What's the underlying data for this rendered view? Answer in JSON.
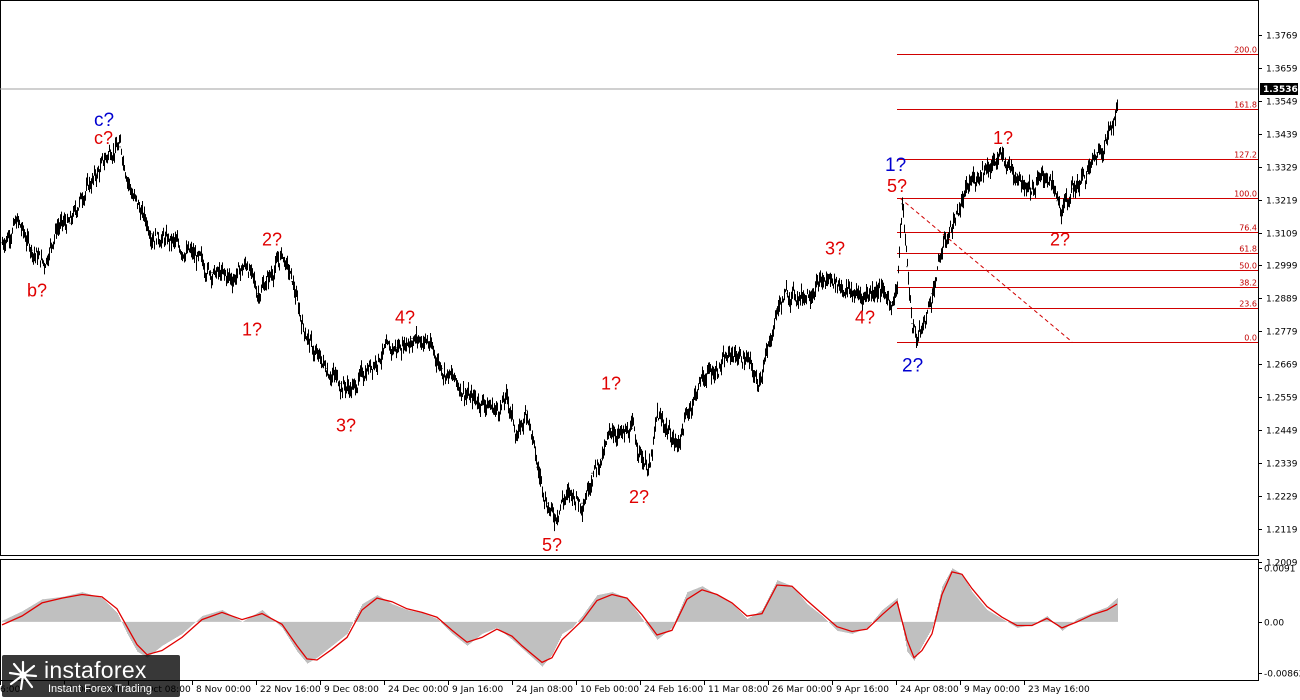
{
  "chart_data": [
    {
      "type": "line",
      "panel": "price",
      "title": "",
      "ylim": [
        1.2032,
        1.3879
      ],
      "y_ticks": [
        "1.3769",
        "1.3659",
        "1.3549",
        "1.3439",
        "1.3329",
        "1.3219",
        "1.3109",
        "1.2999",
        "1.2889",
        "1.2779",
        "1.2669",
        "1.2559",
        "1.2449",
        "1.2339",
        "1.2229",
        "1.2119",
        "1.2009"
      ],
      "x_ticks": [
        "6:00",
        "9 Oct 16:00",
        "24 Oct 08:00",
        "8 Nov 00:00",
        "22 Nov 16:00",
        "9 Dec 08:00",
        "24 Dec 00:00",
        "9 Jan 16:00",
        "24 Jan 08:00",
        "10 Feb 00:00",
        "24 Feb 16:00",
        "11 Mar 08:00",
        "26 Mar 00:00",
        "9 Apr 16:00",
        "24 Apr 08:00",
        "9 May 00:00",
        "23 May 16:00"
      ],
      "current_price": "1.3536",
      "series": [
        {
          "style": "bars-black",
          "x": [
            0,
            15,
            30,
            42,
            55,
            68,
            80,
            95,
            108,
            118,
            130,
            150,
            170,
            190,
            210,
            230,
            245,
            255,
            268,
            280,
            290,
            300,
            312,
            325,
            338,
            350,
            365,
            380,
            395,
            410,
            425,
            440,
            455,
            468,
            480,
            495,
            505,
            515,
            525,
            535,
            545,
            552,
            560,
            570,
            580,
            590,
            600,
            610,
            620,
            630,
            640,
            648,
            655,
            665,
            675,
            685,
            700,
            715,
            730,
            745,
            755,
            765,
            775,
            785,
            800,
            815,
            830,
            845,
            860,
            875,
            890,
            895,
            900,
            905,
            910,
            915,
            922,
            930,
            940,
            955,
            970,
            985,
            1000,
            1015,
            1030,
            1045,
            1055,
            1060,
            1070,
            1085,
            1095,
            1105,
            1115
          ],
          "y": [
            1.3075,
            1.3145,
            1.305,
            1.3005,
            1.313,
            1.314,
            1.3235,
            1.3305,
            1.3385,
            1.3395,
            1.3235,
            1.3105,
            1.3075,
            1.3035,
            1.2975,
            1.2955,
            1.3005,
            1.2905,
            1.2965,
            1.3035,
            1.2945,
            1.2805,
            1.2705,
            1.2655,
            1.2605,
            1.2585,
            1.2655,
            1.2705,
            1.2725,
            1.2755,
            1.2745,
            1.2655,
            1.2605,
            1.2555,
            1.2545,
            1.2515,
            1.2555,
            1.2425,
            1.2515,
            1.2325,
            1.2205,
            1.2155,
            1.2215,
            1.2235,
            1.2205,
            1.2305,
            1.2355,
            1.2455,
            1.2425,
            1.2455,
            1.2355,
            1.2325,
            1.2495,
            1.2455,
            1.2395,
            1.2505,
            1.2625,
            1.2655,
            1.2705,
            1.2685,
            1.2605,
            1.2705,
            1.2855,
            1.2905,
            1.2895,
            1.2935,
            1.2955,
            1.2915,
            1.2895,
            1.2925,
            1.2875,
            1.2935,
            1.3205,
            1.2995,
            1.2805,
            1.2755,
            1.2805,
            1.2905,
            1.3055,
            1.3175,
            1.3285,
            1.3335,
            1.3355,
            1.3305,
            1.3255,
            1.3305,
            1.3215,
            1.3175,
            1.3255,
            1.3305,
            1.3375,
            1.3425,
            1.3536
          ]
        }
      ],
      "fib_levels": [
        {
          "label": "200.0",
          "price": 1.3705
        },
        {
          "label": "161.8",
          "price": 1.3521
        },
        {
          "label": "127.2",
          "price": 1.3355
        },
        {
          "label": "100.0",
          "price": 1.3224
        },
        {
          "label": "76.4",
          "price": 1.3111
        },
        {
          "label": "61.8",
          "price": 1.3041
        },
        {
          "label": "50.0",
          "price": 1.2984
        },
        {
          "label": "38.2",
          "price": 1.2927
        },
        {
          "label": "23.6",
          "price": 1.2857
        },
        {
          "label": "0.0",
          "price": 1.2744
        }
      ],
      "annotations": [
        {
          "text": "c?",
          "color": "#0000d0",
          "x": 92,
          "price": 1.3465
        },
        {
          "text": "c?",
          "color": "#e00000",
          "x": 92,
          "price": 1.3405
        },
        {
          "text": "b?",
          "color": "#e00000",
          "x": 25,
          "price": 1.2895
        },
        {
          "text": "2?",
          "color": "#e00000",
          "x": 260,
          "price": 1.3065
        },
        {
          "text": "1?",
          "color": "#e00000",
          "x": 240,
          "price": 1.2765
        },
        {
          "text": "3?",
          "color": "#e00000",
          "x": 334,
          "price": 1.2445
        },
        {
          "text": "4?",
          "color": "#e00000",
          "x": 393,
          "price": 1.2805
        },
        {
          "text": "5?",
          "color": "#e00000",
          "x": 540,
          "price": 1.2045
        },
        {
          "text": "1?",
          "color": "#e00000",
          "x": 599,
          "price": 1.2585
        },
        {
          "text": "2?",
          "color": "#e00000",
          "x": 627,
          "price": 1.2205
        },
        {
          "text": "3?",
          "color": "#e00000",
          "x": 823,
          "price": 1.3035
        },
        {
          "text": "4?",
          "color": "#e00000",
          "x": 853,
          "price": 1.2805
        },
        {
          "text": "1?",
          "color": "#0000d0",
          "x": 883,
          "price": 1.3315
        },
        {
          "text": "5?",
          "color": "#e00000",
          "x": 885,
          "price": 1.3245
        },
        {
          "text": "2?",
          "color": "#0000d0",
          "x": 900,
          "price": 1.2645
        },
        {
          "text": "1?",
          "color": "#e00000",
          "x": 991,
          "price": 1.3405
        },
        {
          "text": "2?",
          "color": "#e00000",
          "x": 1048,
          "price": 1.3065
        }
      ]
    },
    {
      "type": "area",
      "panel": "oscillator",
      "ylim": [
        -0.00975,
        0.0104
      ],
      "y_ticks": [
        "0.0091",
        "0.00",
        "-0.00862"
      ],
      "series": [
        {
          "style": "histogram-gray",
          "x": [
            0,
            20,
            40,
            60,
            80,
            100,
            115,
            125,
            135,
            145,
            160,
            180,
            200,
            220,
            240,
            260,
            280,
            295,
            305,
            315,
            330,
            345,
            360,
            375,
            390,
            405,
            420,
            435,
            450,
            465,
            480,
            495,
            510,
            520,
            530,
            540,
            550,
            560,
            570,
            580,
            595,
            610,
            625,
            640,
            655,
            670,
            685,
            700,
            715,
            730,
            745,
            760,
            775,
            790,
            805,
            820,
            835,
            850,
            865,
            880,
            895,
            905,
            912,
            920,
            930,
            940,
            950,
            960,
            970,
            985,
            1000,
            1015,
            1030,
            1045,
            1060,
            1075,
            1090,
            1105,
            1115
          ],
          "y": [
            0.0002,
            0.0018,
            0.0038,
            0.0042,
            0.005,
            0.004,
            0.0015,
            -0.002,
            -0.005,
            -0.006,
            -0.004,
            -0.002,
            0.001,
            0.002,
            0.0,
            0.002,
            -0.001,
            -0.005,
            -0.007,
            -0.006,
            -0.004,
            -0.002,
            0.003,
            0.0045,
            0.003,
            0.002,
            0.0015,
            0.0005,
            -0.002,
            -0.004,
            -0.002,
            -0.001,
            -0.003,
            -0.0045,
            -0.006,
            -0.0075,
            -0.0055,
            -0.002,
            -0.001,
            0.001,
            0.0045,
            0.005,
            0.004,
            0.0005,
            -0.003,
            -0.001,
            0.005,
            0.006,
            0.0045,
            0.003,
            0.0005,
            0.002,
            0.007,
            0.006,
            0.003,
            0.001,
            -0.0015,
            -0.002,
            -0.001,
            0.002,
            0.004,
            -0.005,
            -0.0065,
            -0.004,
            -0.001,
            0.006,
            0.009,
            0.008,
            0.005,
            0.002,
            0.0005,
            -0.001,
            -0.0005,
            0.001,
            -0.0015,
            0.0005,
            0.0015,
            0.0025,
            0.004
          ]
        },
        {
          "style": "line-red",
          "x": [
            0,
            20,
            40,
            60,
            80,
            100,
            115,
            125,
            135,
            145,
            160,
            180,
            200,
            220,
            240,
            260,
            280,
            295,
            305,
            315,
            330,
            345,
            360,
            375,
            390,
            405,
            420,
            435,
            450,
            465,
            480,
            495,
            510,
            520,
            530,
            540,
            550,
            560,
            570,
            580,
            595,
            610,
            625,
            640,
            655,
            670,
            685,
            700,
            715,
            730,
            745,
            760,
            775,
            790,
            805,
            820,
            835,
            850,
            865,
            880,
            895,
            905,
            912,
            920,
            930,
            940,
            950,
            960,
            970,
            985,
            1000,
            1015,
            1030,
            1045,
            1060,
            1075,
            1090,
            1105,
            1115
          ],
          "y": [
            -0.0005,
            0.001,
            0.0032,
            0.004,
            0.0046,
            0.0042,
            0.0022,
            -0.0008,
            -0.0038,
            -0.0055,
            -0.0048,
            -0.0026,
            0.0004,
            0.0016,
            0.0004,
            0.0014,
            -0.0004,
            -0.004,
            -0.0062,
            -0.0064,
            -0.0046,
            -0.0026,
            0.002,
            0.004,
            0.0034,
            0.0022,
            0.0016,
            0.0008,
            -0.0014,
            -0.0034,
            -0.0026,
            -0.0012,
            -0.0024,
            -0.004,
            -0.0054,
            -0.0068,
            -0.006,
            -0.003,
            -0.0014,
            0.0002,
            0.0036,
            0.0046,
            0.004,
            0.0012,
            -0.0022,
            -0.0014,
            0.0038,
            0.0054,
            0.0046,
            0.0032,
            0.001,
            0.0014,
            0.0062,
            0.006,
            0.0036,
            0.0014,
            -0.0008,
            -0.0016,
            -0.0012,
            0.0012,
            0.0034,
            -0.003,
            -0.006,
            -0.0048,
            -0.002,
            0.0046,
            0.0084,
            0.008,
            0.0056,
            0.0026,
            0.0008,
            -0.0006,
            -0.0006,
            0.0006,
            -0.001,
            0.0,
            0.0012,
            0.002,
            0.003
          ]
        }
      ]
    }
  ],
  "watermark": {
    "name": "instaforex",
    "tagline": "Instant Forex Trading",
    "icon": "instaforex-logo-icon"
  },
  "colors": {
    "candles": "#000000",
    "fib_lines": "#d00000",
    "wave_red": "#e00000",
    "wave_blue": "#0000d0",
    "osc_histogram": "#c0c0c0",
    "osc_line": "#e00000",
    "price_box": "#000000"
  }
}
